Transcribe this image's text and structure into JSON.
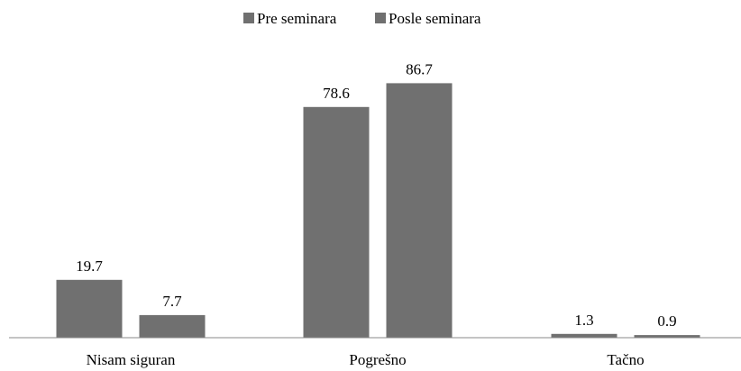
{
  "chart_data": {
    "type": "bar",
    "categories": [
      "Nisam siguran",
      "Pogrešno",
      "Tačno"
    ],
    "series": [
      {
        "name": "Pre seminara",
        "values": [
          19.7,
          78.6,
          1.3
        ],
        "color": "#707070"
      },
      {
        "name": "Posle seminara",
        "values": [
          7.7,
          86.7,
          0.9
        ],
        "color": "#707070"
      }
    ],
    "data_labels": true,
    "legend_position": "top-center",
    "grid": false,
    "ylim": [
      0,
      100
    ],
    "title": "",
    "xlabel": "",
    "ylabel": ""
  }
}
